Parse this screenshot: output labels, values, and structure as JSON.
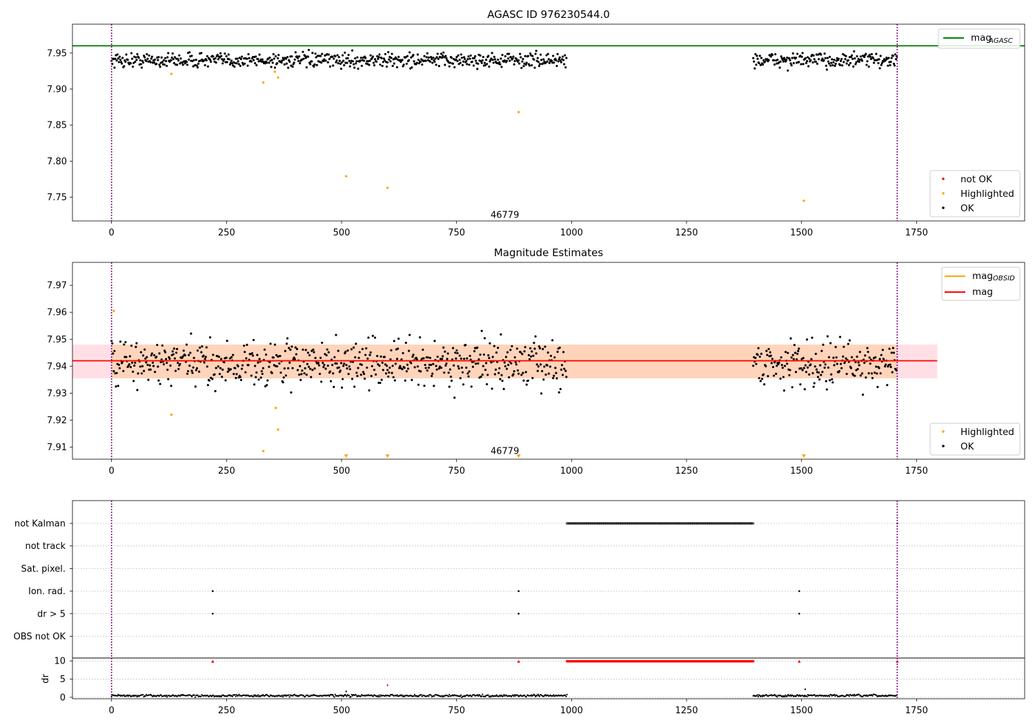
{
  "chart_data": [
    {
      "type": "scatter",
      "title": "AGASC ID 976230544.0",
      "xlim": [
        -85,
        1985
      ],
      "ylim": [
        7.717,
        7.99
      ],
      "xticks": [
        0,
        250,
        500,
        750,
        1000,
        1250,
        1500,
        1750
      ],
      "yticks": [
        7.75,
        7.8,
        7.85,
        7.9,
        7.95
      ],
      "ytick_labels": [
        "7.75",
        "7.80",
        "7.85",
        "7.90",
        "7.95"
      ],
      "obsid_bounds": [
        0,
        1708
      ],
      "annotation": {
        "text": "46779",
        "x": 855,
        "y": 7.725
      },
      "reference_line": {
        "name": "mag_AGASC",
        "value": 7.96,
        "color": "#008000"
      },
      "ok_segments": [
        {
          "x_start": 0,
          "x_end": 990,
          "mean": 7.94,
          "spread": 0.01
        },
        {
          "x_start": 1395,
          "x_end": 1708,
          "mean": 7.94,
          "spread": 0.01
        }
      ],
      "highlighted_points": [
        {
          "x": 130,
          "y": 7.921
        },
        {
          "x": 330,
          "y": 7.909
        },
        {
          "x": 355,
          "y": 7.924
        },
        {
          "x": 362,
          "y": 7.916
        },
        {
          "x": 510,
          "y": 7.779
        },
        {
          "x": 600,
          "y": 7.763
        },
        {
          "x": 885,
          "y": 7.868
        },
        {
          "x": 1505,
          "y": 7.745
        }
      ],
      "legend": {
        "placement": "lower-right",
        "entries": [
          {
            "label": "not OK",
            "color": "#ff0000"
          },
          {
            "label": "Highlighted",
            "color": "#ffa500"
          },
          {
            "label": "OK",
            "color": "#000000"
          }
        ]
      },
      "top_legend": {
        "placement": "upper-right",
        "entries": [
          {
            "label": "mag",
            "sub": "AGASC",
            "color": "#008000"
          }
        ]
      }
    },
    {
      "type": "scatter",
      "title": "Magnitude Estimates",
      "xlim": [
        -85,
        1985
      ],
      "ylim": [
        7.9055,
        7.9785
      ],
      "xticks": [
        0,
        250,
        500,
        750,
        1000,
        1250,
        1500,
        1750
      ],
      "yticks": [
        7.91,
        7.92,
        7.93,
        7.94,
        7.95,
        7.96,
        7.97
      ],
      "ytick_labels": [
        "7.91",
        "7.92",
        "7.93",
        "7.94",
        "7.95",
        "7.96",
        "7.97"
      ],
      "obsid_bounds": [
        0,
        1708
      ],
      "annotation": {
        "text": "46779",
        "x": 855,
        "y": 7.9085
      },
      "mag_line": {
        "name": "mag",
        "value": 7.942,
        "x_start": -85,
        "x_end": 1795,
        "color": "#ff0000"
      },
      "mag_band": {
        "low": 7.9355,
        "high": 7.948,
        "x_start": -85,
        "x_end": 1795
      },
      "obsid_line": {
        "name": "mag_OBSID",
        "value": 7.942,
        "x_start": 0,
        "x_end": 1708,
        "color": "#ffa500"
      },
      "obsid_band": {
        "low": 7.9355,
        "high": 7.948,
        "x_start": 0,
        "x_end": 1708
      },
      "ok_segments": [
        {
          "x_start": 0,
          "x_end": 990,
          "mean": 7.941,
          "spread": 0.0065
        },
        {
          "x_start": 1395,
          "x_end": 1708,
          "mean": 7.941,
          "spread": 0.0065
        }
      ],
      "highlighted_points": [
        {
          "x": 5,
          "y": 7.9605
        },
        {
          "x": 130,
          "y": 7.922
        },
        {
          "x": 330,
          "y": 7.9085
        },
        {
          "x": 357,
          "y": 7.9245
        },
        {
          "x": 362,
          "y": 7.9165
        }
      ],
      "offscale_markers": [
        {
          "x": 510,
          "y": 7.9065
        },
        {
          "x": 600,
          "y": 7.9065
        },
        {
          "x": 885,
          "y": 7.9065
        },
        {
          "x": 1505,
          "y": 7.9065
        }
      ],
      "legend": {
        "placement": "lower-right",
        "entries": [
          {
            "label": "Highlighted",
            "color": "#ffa500"
          },
          {
            "label": "OK",
            "color": "#000000"
          }
        ]
      },
      "top_legend": {
        "placement": "upper-right",
        "entries": [
          {
            "label": "mag",
            "sub": "OBSID",
            "color": "#ffa500"
          },
          {
            "label": "mag",
            "sub": "",
            "color": "#ff0000"
          }
        ]
      }
    },
    {
      "type": "scatter",
      "title": "",
      "xlim": [
        -85,
        1985
      ],
      "xticks": [
        0,
        250,
        500,
        750,
        1000,
        1250,
        1500,
        1750
      ],
      "obsid_bounds": [
        0,
        1708
      ],
      "flag_rows": [
        "not Kalman",
        "not track",
        "Sat. pixel.",
        "Ion. rad.",
        "dr > 5",
        "OBS not OK"
      ],
      "flags": {
        "not Kalman": {
          "ranges": [
            [
              990,
              1397
            ]
          ],
          "points": [
            1708
          ]
        },
        "not track": {
          "ranges": [],
          "points": []
        },
        "Sat. pixel.": {
          "ranges": [],
          "points": []
        },
        "Ion. rad.": {
          "ranges": [],
          "points": [
            220,
            885,
            1495
          ]
        },
        "dr > 5": {
          "ranges": [],
          "points": [
            220,
            885,
            1495
          ]
        },
        "OBS not OK": {
          "ranges": [],
          "points": []
        }
      },
      "dr_panel": {
        "ylabel": "dr",
        "ylim": [
          -0.4,
          10.8
        ],
        "yticks": [
          0,
          5,
          10
        ],
        "ytick_labels": [
          "0",
          "5",
          "10"
        ],
        "ok_segments": [
          {
            "x_start": 0,
            "x_end": 990,
            "mean": 0.45,
            "spread": 0.25
          },
          {
            "x_start": 1395,
            "x_end": 1708,
            "mean": 0.45,
            "spread": 0.25
          }
        ],
        "capped_ranges": [
          [
            990,
            1397
          ]
        ],
        "capped_points": [
          220,
          885,
          1495,
          1708
        ],
        "capped_value": 9.9,
        "extra_points": [
          {
            "x": 510,
            "y": 1.6
          },
          {
            "x": 1508,
            "y": 2.2
          },
          {
            "x": 600,
            "y": 3.3,
            "color": "#ff0000"
          }
        ]
      }
    }
  ]
}
